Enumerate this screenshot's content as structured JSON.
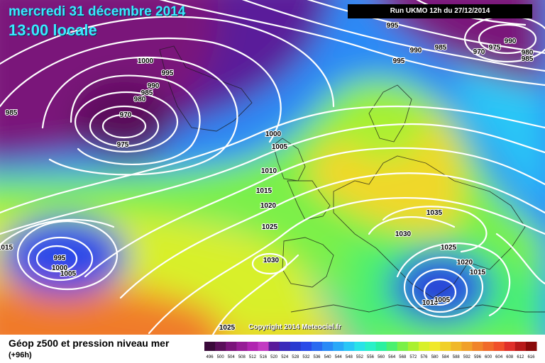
{
  "header": {
    "date": "mercredi 31 décembre 2014",
    "time": "13:00 locale",
    "run": "Run UKMO 12h du 27/12/2014"
  },
  "copyright": "Copyright 2014 Meteociel.fr",
  "footer": {
    "product": "Géop z500 et pression niveau mer",
    "lead": "(+96h)"
  },
  "scale_labels": [
    "496",
    "500",
    "504",
    "508",
    "512",
    "516",
    "520",
    "524",
    "528",
    "532",
    "536",
    "540",
    "544",
    "548",
    "552",
    "556",
    "560",
    "564",
    "568",
    "572",
    "576",
    "580",
    "584",
    "588",
    "592",
    "596",
    "600",
    "604",
    "608",
    "612",
    "616"
  ],
  "scale_colors": [
    "#3a0a3a",
    "#5a0f5a",
    "#7a147a",
    "#961c96",
    "#b024b0",
    "#c23ac2",
    "#5a1a9a",
    "#3a2aba",
    "#2a3ad0",
    "#2a4ae8",
    "#2a6af0",
    "#2a8af6",
    "#2aa8f8",
    "#2ac6f6",
    "#2ae2e8",
    "#2af0c8",
    "#2af0a0",
    "#4af070",
    "#7af048",
    "#aaf030",
    "#d8f02a",
    "#f0e82a",
    "#f0d02a",
    "#f0b82a",
    "#f0a02a",
    "#f0842a",
    "#f06a2a",
    "#f0502a",
    "#e0302a",
    "#b81a1a",
    "#8a0a0a"
  ],
  "pressure_labels": [
    "985",
    "970",
    "975",
    "980",
    "985",
    "990",
    "995",
    "1000",
    "995",
    "990",
    "985",
    "970",
    "975",
    "980",
    "985",
    "990",
    "995",
    "1000",
    "1005",
    "1010",
    "1015",
    "1020",
    "1025",
    "1030",
    "1015",
    "995",
    "1000",
    "1005",
    "1030",
    "1035",
    "1025",
    "1020",
    "1015",
    "1010",
    "1005",
    "1025"
  ]
}
